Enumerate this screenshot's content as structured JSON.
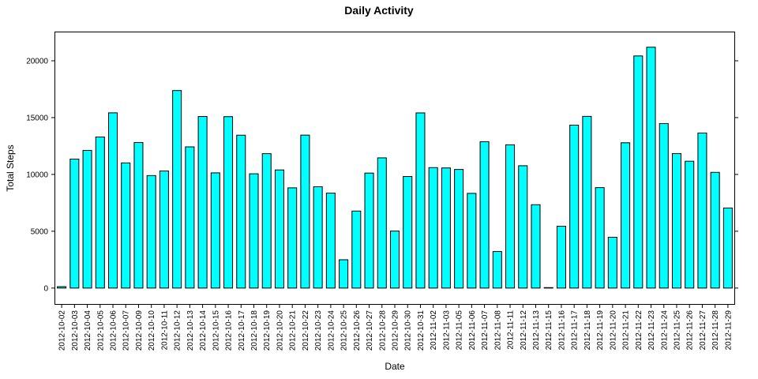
{
  "chart_data": {
    "type": "bar",
    "title": "Daily Activity",
    "xlabel": "Date",
    "ylabel": "Total Steps",
    "ylim": [
      -1400,
      22500
    ],
    "yticks": [
      0,
      5000,
      10000,
      15000,
      20000
    ],
    "bar_color": "#00ffff",
    "bar_edge_color": "#000000",
    "grid": false,
    "categories": [
      "2012-10-02",
      "2012-10-03",
      "2012-10-04",
      "2012-10-05",
      "2012-10-06",
      "2012-10-07",
      "2012-10-09",
      "2012-10-10",
      "2012-10-11",
      "2012-10-12",
      "2012-10-13",
      "2012-10-14",
      "2012-10-15",
      "2012-10-16",
      "2012-10-17",
      "2012-10-18",
      "2012-10-19",
      "2012-10-20",
      "2012-10-21",
      "2012-10-22",
      "2012-10-23",
      "2012-10-24",
      "2012-10-25",
      "2012-10-26",
      "2012-10-27",
      "2012-10-28",
      "2012-10-29",
      "2012-10-30",
      "2012-10-31",
      "2012-11-02",
      "2012-11-03",
      "2012-11-05",
      "2012-11-06",
      "2012-11-07",
      "2012-11-08",
      "2012-11-11",
      "2012-11-12",
      "2012-11-13",
      "2012-11-15",
      "2012-11-16",
      "2012-11-17",
      "2012-11-18",
      "2012-11-19",
      "2012-11-20",
      "2012-11-21",
      "2012-11-22",
      "2012-11-23",
      "2012-11-24",
      "2012-11-25",
      "2012-11-26",
      "2012-11-27",
      "2012-11-28",
      "2012-11-29"
    ],
    "values": [
      126,
      11352,
      12116,
      13294,
      15420,
      11015,
      12811,
      9900,
      10304,
      17382,
      12426,
      15098,
      10139,
      15084,
      13452,
      10056,
      11829,
      10395,
      8821,
      13460,
      8918,
      8355,
      2492,
      6778,
      10119,
      11458,
      5018,
      9819,
      15414,
      10600,
      10571,
      10439,
      8334,
      12883,
      3219,
      12608,
      10765,
      7336,
      41,
      5441,
      14339,
      15110,
      8841,
      4472,
      12787,
      20427,
      21194,
      14478,
      11834,
      11162,
      13646,
      10183,
      7047
    ]
  }
}
